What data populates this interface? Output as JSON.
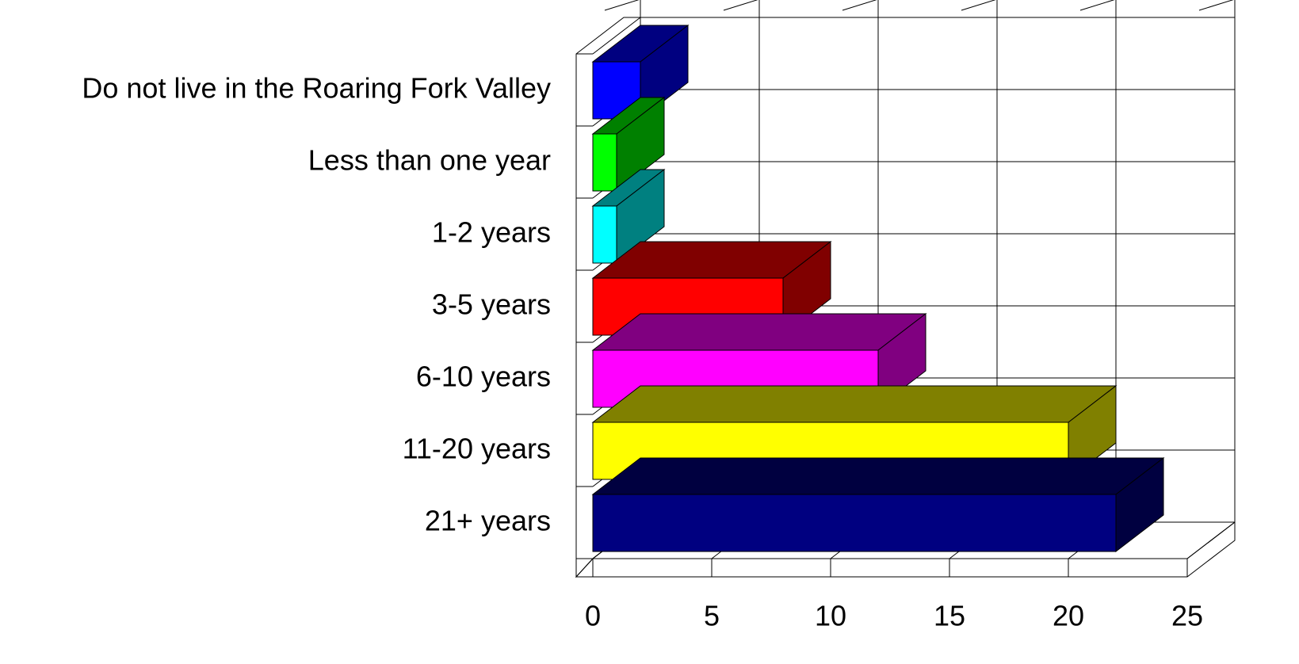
{
  "chart_data": {
    "type": "bar3d_horizontal",
    "categories": [
      "Do not live in the Roaring Fork Valley",
      "Less than one year",
      "1-2 years",
      "3-5 years",
      "6-10 years",
      "11-20 years",
      "21+ years"
    ],
    "values": [
      2,
      1,
      1,
      8,
      12,
      20,
      22
    ],
    "colors": [
      "#0000ff",
      "#00ff00",
      "#00ffff",
      "#ff0000",
      "#ff00ff",
      "#ffff00",
      "#000080"
    ],
    "side_colors": [
      "#000080",
      "#008000",
      "#008080",
      "#800000",
      "#800080",
      "#808000",
      "#000040"
    ],
    "xlim": [
      0,
      25
    ],
    "xticks": [
      0,
      5,
      10,
      15,
      20,
      25
    ],
    "grid": true
  }
}
